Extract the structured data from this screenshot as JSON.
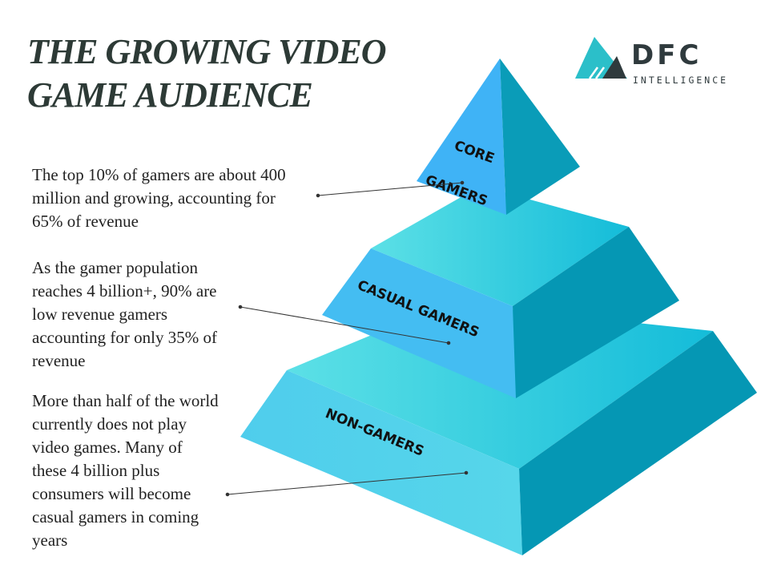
{
  "title_lines": [
    "THE GROWING VIDEO",
    "GAME AUDIENCE"
  ],
  "logo": {
    "name": "DFC",
    "sub": "INTELLIGENCE",
    "colors": {
      "teal": "#2bbfc9",
      "dark": "#2f3a3d"
    }
  },
  "descriptions": [
    {
      "lines": [
        "The top 10% of gamers are about 400",
        "million and growing, accounting for",
        "65% of revenue"
      ]
    },
    {
      "lines": [
        "As the gamer population",
        "reaches 4 billion+, 90% are",
        "low revenue gamers",
        "accounting for only 35% of",
        "revenue"
      ]
    },
    {
      "lines": [
        "More than half of the world",
        "currently does not play",
        "video games.  Many of",
        "these 4 billion plus",
        "consumers will become",
        "casual gamers in coming",
        "years"
      ]
    }
  ],
  "pyramid": {
    "tiers": [
      {
        "label_lines": [
          "CORE",
          "GAMERS"
        ]
      },
      {
        "label_lines": [
          "CASUAL GAMERS"
        ]
      },
      {
        "label_lines": [
          "NON-GAMERS"
        ]
      }
    ],
    "colors": {
      "front": "#42b8f2",
      "top": "#3fd0e2",
      "side": "#0597b4"
    }
  }
}
